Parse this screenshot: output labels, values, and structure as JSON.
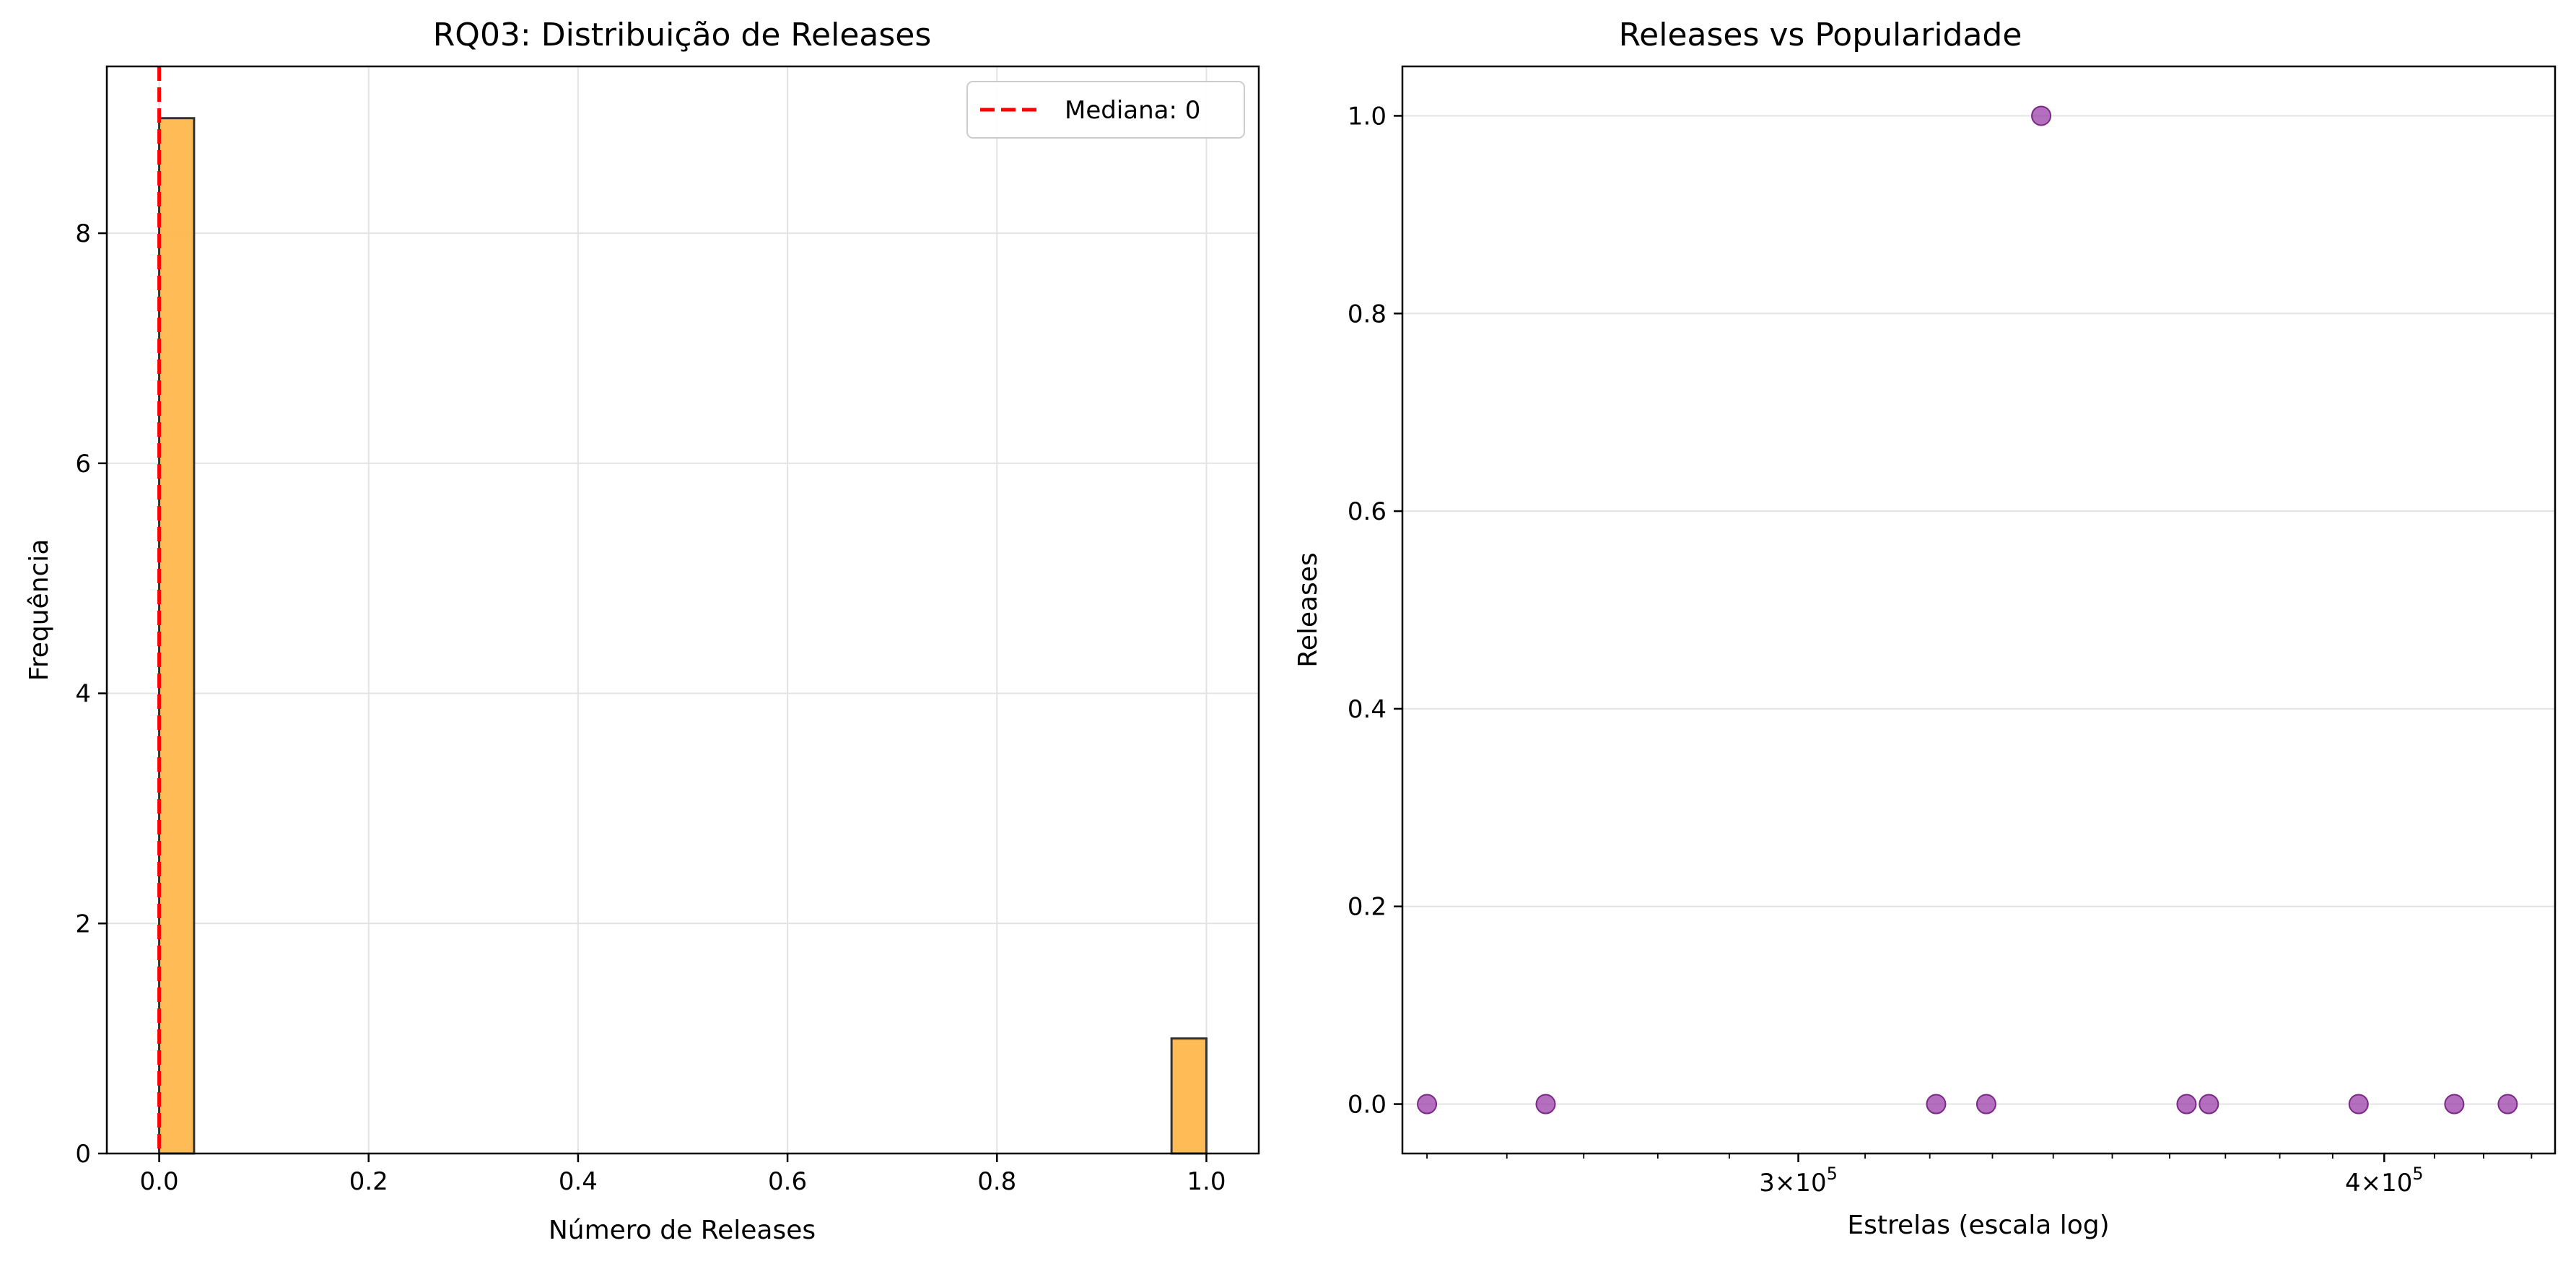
{
  "chart_data": [
    {
      "type": "bar",
      "title": "RQ03: Distribuição de Releases",
      "xlabel": "Número de Releases",
      "ylabel": "Frequência",
      "xlim": [
        -0.05,
        1.05
      ],
      "ylim": [
        0,
        9.45
      ],
      "xticks": [
        0.0,
        0.2,
        0.4,
        0.6,
        0.8,
        1.0
      ],
      "xtick_labels": [
        "0.0",
        "0.2",
        "0.4",
        "0.6",
        "0.8",
        "1.0"
      ],
      "yticks": [
        0,
        2,
        4,
        6,
        8
      ],
      "ytick_labels": [
        "0",
        "2",
        "4",
        "6",
        "8"
      ],
      "grid": true,
      "bar_color": "#FFB84D",
      "bar_edge_color": "#333333",
      "bins": [
        {
          "x0": 0.0,
          "x1": 0.0333,
          "count": 9
        },
        {
          "x0": 0.9667,
          "x1": 1.0,
          "count": 1
        }
      ],
      "median_line": {
        "x": 0,
        "color": "#FF0000",
        "label": "Mediana: 0"
      },
      "legend": {
        "placement": "top-right",
        "entries": [
          "Mediana: 0"
        ]
      }
    },
    {
      "type": "scatter",
      "title": "Releases vs Popularidade",
      "xlabel": "Estrelas (escala log)",
      "ylabel": "Releases",
      "xscale": "log",
      "xlim": [
        247000,
        435000
      ],
      "ylim": [
        -0.05,
        1.05
      ],
      "xticks": [
        300000,
        400000
      ],
      "xtick_labels": [
        {
          "mantissa": "3",
          "exponent": "5"
        },
        {
          "mantissa": "4",
          "exponent": "5"
        }
      ],
      "yticks": [
        0.0,
        0.2,
        0.4,
        0.6,
        0.8,
        1.0
      ],
      "ytick_labels": [
        "0.0",
        "0.2",
        "0.4",
        "0.6",
        "0.8",
        "1.0"
      ],
      "grid": "y",
      "point_color": "#9B3FA8",
      "points": [
        {
          "x": 250000,
          "y": 0
        },
        {
          "x": 265000,
          "y": 0
        },
        {
          "x": 321000,
          "y": 0
        },
        {
          "x": 329000,
          "y": 0
        },
        {
          "x": 338000,
          "y": 1
        },
        {
          "x": 363000,
          "y": 0
        },
        {
          "x": 367000,
          "y": 0
        },
        {
          "x": 395000,
          "y": 0
        },
        {
          "x": 414000,
          "y": 0
        },
        {
          "x": 425000,
          "y": 0
        }
      ]
    }
  ]
}
